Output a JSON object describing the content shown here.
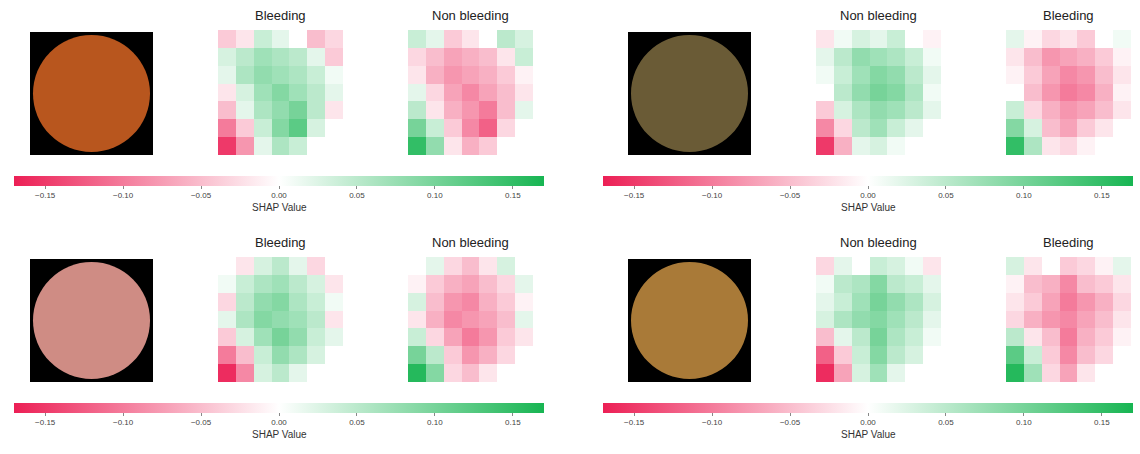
{
  "chart_data": [
    {
      "type": "heatmap",
      "tick_labels": false,
      "panels": [
        {
          "title": "Bleeding",
          "z": [
            [
              -0.04,
              -0.02,
              0.04,
              0.02,
              0,
              -0.05,
              -0.03
            ],
            [
              0.03,
              0.05,
              0.07,
              0.06,
              0.05,
              0.02,
              -0.04
            ],
            [
              0.02,
              0.06,
              0.08,
              0.07,
              0.06,
              0.04,
              0.01
            ],
            [
              -0.02,
              0.03,
              0.07,
              0.09,
              0.07,
              0.05,
              0.02
            ],
            [
              -0.05,
              0.02,
              0.06,
              0.08,
              0.1,
              0.05,
              -0.02
            ],
            [
              -0.1,
              -0.04,
              0.04,
              0.09,
              0.12,
              0.03,
              null
            ],
            [
              -0.15,
              -0.08,
              0.02,
              0.06,
              0.04,
              null,
              null
            ]
          ]
        },
        {
          "title": "Non bleeding",
          "z": [
            [
              0.04,
              0.02,
              -0.04,
              -0.02,
              0,
              0.05,
              0.03
            ],
            [
              -0.03,
              -0.05,
              -0.07,
              -0.06,
              -0.05,
              -0.02,
              0.04
            ],
            [
              -0.02,
              -0.06,
              -0.08,
              -0.07,
              -0.06,
              -0.04,
              -0.01
            ],
            [
              0.02,
              -0.03,
              -0.07,
              -0.09,
              -0.07,
              -0.05,
              -0.02
            ],
            [
              0.05,
              -0.02,
              -0.06,
              -0.08,
              -0.1,
              -0.05,
              0.02
            ],
            [
              0.1,
              0.04,
              -0.04,
              -0.09,
              -0.12,
              -0.03,
              null
            ],
            [
              0.15,
              0.08,
              -0.02,
              -0.06,
              -0.04,
              null,
              null
            ]
          ]
        }
      ],
      "colorbar": {
        "title": "SHAP Value",
        "zlim": [
          -0.17,
          0.17
        ],
        "ticks": [
          {
            "value": -0.15,
            "label": "−0.15"
          },
          {
            "value": -0.1,
            "label": "−0.10"
          },
          {
            "value": -0.05,
            "label": "−0.05"
          },
          {
            "value": 0,
            "label": "0.00"
          },
          0.05,
          {
            "value": 0.1,
            "label": "0.10"
          },
          0.15
        ]
      }
    },
    {
      "type": "heatmap",
      "tick_labels": false,
      "panels": [
        {
          "title": "Non bleeding",
          "z": [
            [
              -0.02,
              0.01,
              0.03,
              0.02,
              0.04,
              0,
              -0.01
            ],
            [
              0.02,
              0.05,
              0.08,
              0.07,
              0.06,
              0.04,
              0.01
            ],
            [
              0.01,
              0.04,
              0.07,
              0.09,
              0.08,
              0.05,
              0.02
            ],
            [
              0,
              0.05,
              0.08,
              0.1,
              0.09,
              0.06,
              0.01
            ],
            [
              -0.04,
              0.03,
              0.06,
              0.08,
              0.07,
              0.05,
              0.02
            ],
            [
              -0.09,
              -0.03,
              0.05,
              0.07,
              0.04,
              0.02,
              null
            ],
            [
              -0.15,
              -0.06,
              0.02,
              0.03,
              0.01,
              null,
              null
            ]
          ]
        },
        {
          "title": "Bleeding",
          "z": [
            [
              0.02,
              -0.01,
              -0.03,
              -0.02,
              -0.04,
              0,
              0.01
            ],
            [
              -0.02,
              -0.05,
              -0.08,
              -0.07,
              -0.06,
              -0.04,
              -0.01
            ],
            [
              -0.01,
              -0.04,
              -0.07,
              -0.09,
              -0.08,
              -0.05,
              -0.02
            ],
            [
              0,
              -0.05,
              -0.08,
              -0.1,
              -0.09,
              -0.06,
              -0.01
            ],
            [
              0.04,
              -0.03,
              -0.06,
              -0.08,
              -0.07,
              -0.05,
              -0.02
            ],
            [
              0.09,
              0.03,
              -0.05,
              -0.07,
              -0.04,
              -0.02,
              null
            ],
            [
              0.15,
              0.06,
              -0.02,
              -0.03,
              -0.01,
              null,
              null
            ]
          ]
        }
      ],
      "colorbar": {
        "title": "SHAP Value",
        "zlim": [
          -0.17,
          0.17
        ],
        "ticks": [
          {
            "value": -0.15,
            "label": "−0.15"
          },
          {
            "value": -0.1,
            "label": "−0.10"
          },
          {
            "value": -0.05,
            "label": "−0.05"
          },
          {
            "value": 0,
            "label": "0.00"
          },
          0.05,
          {
            "value": 0.1,
            "label": "0.10"
          },
          0.15
        ]
      }
    },
    {
      "type": "heatmap",
      "tick_labels": false,
      "panels": [
        {
          "title": "Bleeding",
          "z": [
            [
              null,
              -0.02,
              0.03,
              0.05,
              0.02,
              -0.03,
              null
            ],
            [
              0.01,
              0.04,
              0.06,
              0.07,
              0.05,
              0.03,
              -0.02
            ],
            [
              -0.03,
              0.05,
              0.08,
              0.09,
              0.06,
              0.04,
              0.01
            ],
            [
              0.02,
              0.06,
              0.09,
              0.08,
              0.07,
              0.05,
              -0.02
            ],
            [
              -0.04,
              0.03,
              0.07,
              0.1,
              0.08,
              0.04,
              0.02
            ],
            [
              -0.1,
              -0.05,
              0.04,
              0.08,
              0.06,
              0.03,
              null
            ],
            [
              -0.16,
              -0.09,
              0.03,
              0.05,
              0.02,
              null,
              null
            ]
          ]
        },
        {
          "title": "Non bleeding",
          "z": [
            [
              null,
              0.02,
              -0.03,
              -0.05,
              -0.02,
              0.03,
              null
            ],
            [
              -0.01,
              -0.04,
              -0.06,
              -0.07,
              -0.05,
              -0.03,
              0.02
            ],
            [
              0.03,
              -0.05,
              -0.08,
              -0.09,
              -0.06,
              -0.04,
              -0.01
            ],
            [
              -0.02,
              -0.06,
              -0.09,
              -0.08,
              -0.07,
              -0.05,
              0.02
            ],
            [
              0.04,
              -0.03,
              -0.07,
              -0.1,
              -0.08,
              -0.04,
              -0.02
            ],
            [
              0.1,
              0.05,
              -0.04,
              -0.08,
              -0.06,
              -0.03,
              null
            ],
            [
              0.16,
              0.09,
              -0.03,
              -0.05,
              -0.02,
              null,
              null
            ]
          ]
        }
      ],
      "colorbar": {
        "title": "SHAP Value",
        "zlim": [
          -0.17,
          0.17
        ],
        "ticks": [
          {
            "value": -0.15,
            "label": "−0.15"
          },
          {
            "value": -0.1,
            "label": "−0.10"
          },
          {
            "value": -0.05,
            "label": "−0.05"
          },
          {
            "value": 0,
            "label": "0.00"
          },
          0.05,
          {
            "value": 0.1,
            "label": "0.10"
          },
          0.15
        ]
      }
    },
    {
      "type": "heatmap",
      "tick_labels": false,
      "panels": [
        {
          "title": "Non bleeding",
          "z": [
            [
              -0.03,
              0.02,
              0,
              0.04,
              0.03,
              0.01,
              -0.02
            ],
            [
              0.01,
              0.05,
              0.06,
              0.09,
              0.05,
              0.04,
              0.02
            ],
            [
              0.02,
              0.04,
              0.07,
              0.1,
              0.08,
              0.06,
              0.03
            ],
            [
              0.03,
              0.06,
              0.08,
              0.09,
              0.07,
              0.05,
              0.02
            ],
            [
              -0.05,
              0.02,
              0.05,
              0.1,
              0.06,
              0.04,
              0.01
            ],
            [
              -0.12,
              -0.04,
              0.04,
              0.09,
              0.05,
              0.03,
              null
            ],
            [
              -0.16,
              -0.07,
              0.03,
              0.07,
              0.02,
              null,
              null
            ]
          ]
        },
        {
          "title": "Bleeding",
          "z": [
            [
              0.03,
              -0.02,
              0,
              -0.04,
              -0.03,
              -0.01,
              0.02
            ],
            [
              -0.01,
              -0.05,
              -0.06,
              -0.09,
              -0.05,
              -0.04,
              -0.02
            ],
            [
              -0.02,
              -0.04,
              -0.07,
              -0.1,
              -0.08,
              -0.06,
              -0.03
            ],
            [
              -0.03,
              -0.06,
              -0.08,
              -0.09,
              -0.07,
              -0.05,
              -0.02
            ],
            [
              0.05,
              -0.02,
              -0.05,
              -0.1,
              -0.06,
              -0.04,
              -0.01
            ],
            [
              0.12,
              0.04,
              -0.04,
              -0.09,
              -0.05,
              -0.03,
              null
            ],
            [
              0.16,
              0.07,
              -0.03,
              -0.07,
              -0.02,
              null,
              null
            ]
          ]
        }
      ],
      "colorbar": {
        "title": "SHAP Value",
        "zlim": [
          -0.17,
          0.17
        ],
        "ticks": [
          {
            "value": -0.15,
            "label": "−0.15"
          },
          {
            "value": -0.1,
            "label": "−0.10"
          },
          {
            "value": -0.05,
            "label": "−0.05"
          },
          {
            "value": 0,
            "label": "0.00"
          },
          0.05,
          {
            "value": 0.1,
            "label": "0.10"
          },
          0.15
        ]
      }
    }
  ]
}
